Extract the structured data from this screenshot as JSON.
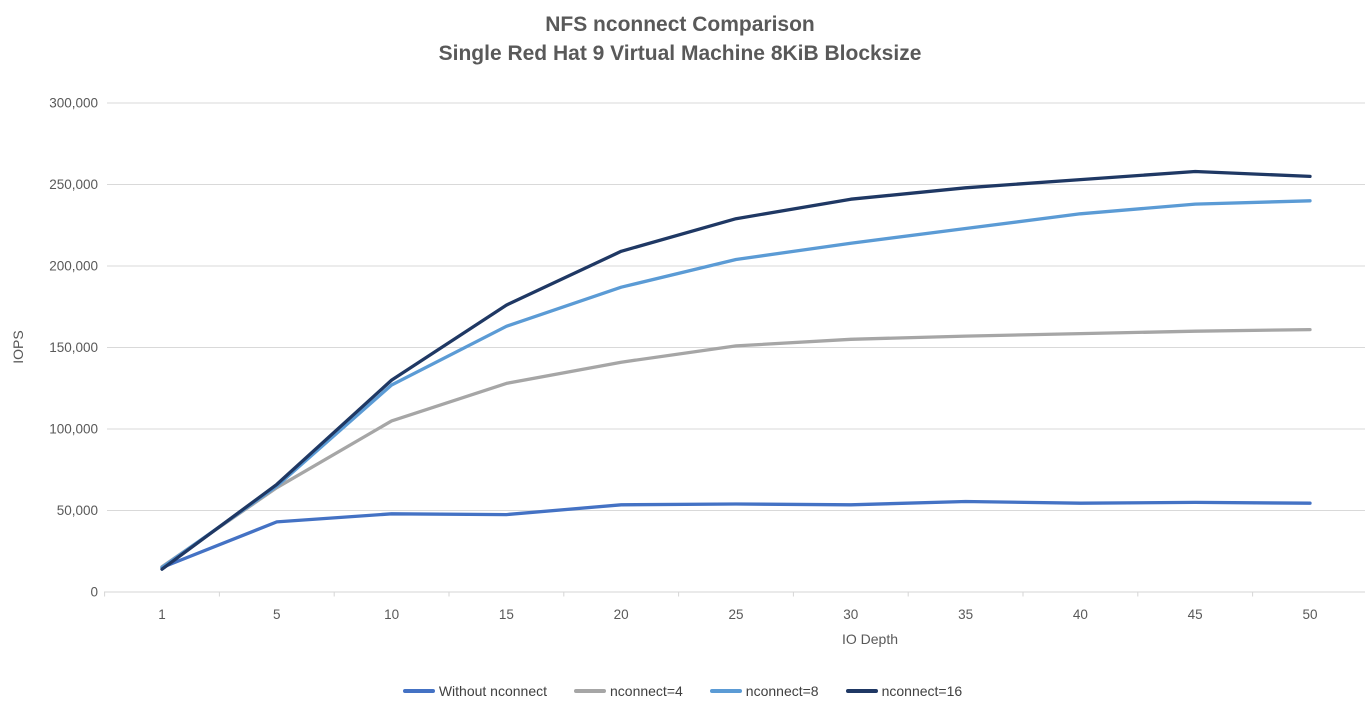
{
  "chart_data": {
    "type": "line",
    "title": "NFS nconnect Comparison",
    "subtitle": "Single Red Hat 9 Virtual Machine 8KiB Blocksize",
    "xlabel": "IO Depth",
    "ylabel": "IOPS",
    "x_categories": [
      "1",
      "5",
      "10",
      "15",
      "20",
      "25",
      "30",
      "35",
      "40",
      "45",
      "50"
    ],
    "y_axis": {
      "min": 0,
      "max": 300000,
      "tick_values": [
        0,
        50000,
        100000,
        150000,
        200000,
        250000,
        300000
      ],
      "tick_labels": [
        "0",
        "50,000",
        "100,000",
        "150,000",
        "200,000",
        "250,000",
        "300,000"
      ]
    },
    "grid": "horizontal",
    "legend_position": "bottom",
    "series": [
      {
        "name": "Without nconnect",
        "color": "#4472C4",
        "values": [
          15000,
          43000,
          48000,
          47500,
          53500,
          54000,
          53500,
          55500,
          54500,
          55000,
          54500
        ]
      },
      {
        "name": "nconnect=4",
        "color": "#A6A6A6",
        "values": [
          15500,
          64000,
          105000,
          128000,
          141000,
          151000,
          155000,
          157000,
          158500,
          160000,
          161000
        ]
      },
      {
        "name": "nconnect=8",
        "color": "#5B9BD5",
        "values": [
          15000,
          65000,
          127000,
          163000,
          187000,
          204000,
          214000,
          223000,
          232000,
          238000,
          240000
        ]
      },
      {
        "name": "nconnect=16",
        "color": "#1F3864",
        "values": [
          14000,
          66000,
          130000,
          176000,
          209000,
          229000,
          241000,
          248000,
          253000,
          258000,
          255000
        ]
      }
    ],
    "grid_color": "#D9D9D9",
    "axis_color": "#D6D6D6",
    "text_color": "#595959",
    "legend_text_color": "#404040",
    "title_color": "#595959"
  }
}
